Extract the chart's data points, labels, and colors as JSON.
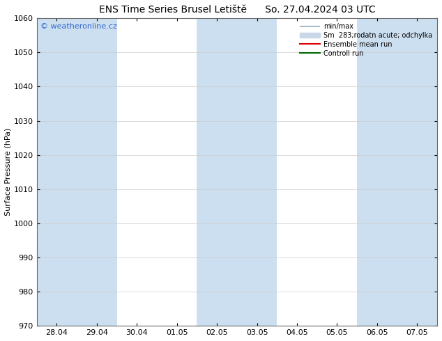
{
  "title_left": "ENS Time Series Brusel Letiště",
  "title_right": "So. 27.04.2024 03 UTC",
  "ylabel": "Surface Pressure (hPa)",
  "ylim": [
    970,
    1060
  ],
  "yticks": [
    970,
    980,
    990,
    1000,
    1010,
    1020,
    1030,
    1040,
    1050,
    1060
  ],
  "xtick_labels": [
    "28.04",
    "29.04",
    "30.04",
    "01.05",
    "02.05",
    "03.05",
    "04.05",
    "05.05",
    "06.05",
    "07.05"
  ],
  "watermark": "© weatheronline.cz",
  "watermark_color": "#3366cc",
  "bg_color": "#ffffff",
  "plot_bg_color": "#ffffff",
  "shaded_columns": [
    0,
    1,
    4,
    5,
    8,
    9
  ],
  "shaded_color": "#ccdff0",
  "legend_entries": [
    {
      "label": "min/max",
      "color": "#aabbcc",
      "lw": 1.5
    },
    {
      "label": "Sm  283;rodatn acute; odchylka",
      "color": "#c8d8e8",
      "lw": 8
    },
    {
      "label": "Ensemble mean run",
      "color": "#dd0000",
      "lw": 1.5
    },
    {
      "label": "Controll run",
      "color": "#006600",
      "lw": 1.5
    }
  ],
  "title_fontsize": 10,
  "tick_fontsize": 8,
  "ylabel_fontsize": 8,
  "watermark_fontsize": 8
}
